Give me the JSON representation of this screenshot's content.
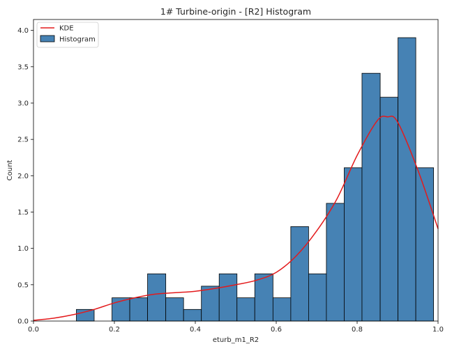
{
  "chart_data": {
    "type": "bar",
    "title": "1# Turbine-origin - [R2] Histogram",
    "xlabel": "eturb_m1_R2",
    "ylabel": "Count",
    "xlim": [
      0,
      1
    ],
    "ylim": [
      0,
      4.15
    ],
    "xticks": [
      0.0,
      0.2,
      0.4,
      0.6,
      0.8,
      1.0
    ],
    "xtick_labels": [
      "0.0",
      "0.2",
      "0.4",
      "0.6",
      "0.8",
      "1.0"
    ],
    "yticks": [
      0.0,
      0.5,
      1.0,
      1.5,
      2.0,
      2.5,
      3.0,
      3.5,
      4.0
    ],
    "ytick_labels": [
      "0.0",
      "0.5",
      "1.0",
      "1.5",
      "2.0",
      "2.5",
      "3.0",
      "3.5",
      "4.0"
    ],
    "grid": false,
    "legend_position": "top-left",
    "series": [
      {
        "name": "Histogram",
        "kind": "histogram",
        "color": "#4682b4",
        "edge_color": "#000000",
        "bins": [
          {
            "x0": 0.106,
            "x1": 0.15,
            "count": 0.16
          },
          {
            "x0": 0.194,
            "x1": 0.238,
            "count": 0.32
          },
          {
            "x0": 0.238,
            "x1": 0.282,
            "count": 0.32
          },
          {
            "x0": 0.282,
            "x1": 0.327,
            "count": 0.65
          },
          {
            "x0": 0.327,
            "x1": 0.371,
            "count": 0.32
          },
          {
            "x0": 0.371,
            "x1": 0.415,
            "count": 0.16
          },
          {
            "x0": 0.415,
            "x1": 0.459,
            "count": 0.48
          },
          {
            "x0": 0.459,
            "x1": 0.503,
            "count": 0.65
          },
          {
            "x0": 0.503,
            "x1": 0.547,
            "count": 0.32
          },
          {
            "x0": 0.547,
            "x1": 0.592,
            "count": 0.65
          },
          {
            "x0": 0.592,
            "x1": 0.636,
            "count": 0.32
          },
          {
            "x0": 0.636,
            "x1": 0.68,
            "count": 1.3
          },
          {
            "x0": 0.68,
            "x1": 0.724,
            "count": 0.65
          },
          {
            "x0": 0.724,
            "x1": 0.768,
            "count": 1.62
          },
          {
            "x0": 0.768,
            "x1": 0.812,
            "count": 2.11
          },
          {
            "x0": 0.812,
            "x1": 0.857,
            "count": 3.41
          },
          {
            "x0": 0.857,
            "x1": 0.901,
            "count": 3.08
          },
          {
            "x0": 0.901,
            "x1": 0.945,
            "count": 3.9
          },
          {
            "x0": 0.945,
            "x1": 0.989,
            "count": 2.11
          }
        ]
      },
      {
        "name": "KDE",
        "kind": "line",
        "color": "#e31a1c",
        "x": [
          0.0,
          0.05,
          0.1,
          0.15,
          0.2,
          0.25,
          0.3,
          0.35,
          0.4,
          0.45,
          0.5,
          0.55,
          0.6,
          0.65,
          0.7,
          0.75,
          0.8,
          0.85,
          0.875,
          0.9,
          0.95,
          1.0
        ],
        "y": [
          0.01,
          0.04,
          0.09,
          0.16,
          0.25,
          0.32,
          0.37,
          0.39,
          0.41,
          0.45,
          0.5,
          0.56,
          0.67,
          0.9,
          1.24,
          1.68,
          2.28,
          2.76,
          2.81,
          2.74,
          2.08,
          1.27
        ]
      }
    ]
  }
}
